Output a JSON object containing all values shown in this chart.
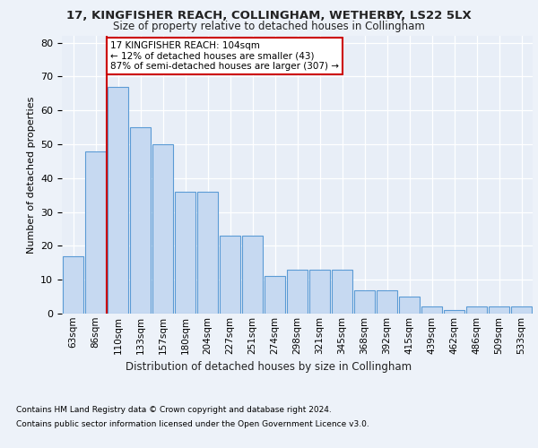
{
  "title": "17, KINGFISHER REACH, COLLINGHAM, WETHERBY, LS22 5LX",
  "subtitle": "Size of property relative to detached houses in Collingham",
  "xlabel": "Distribution of detached houses by size in Collingham",
  "ylabel": "Number of detached properties",
  "categories": [
    "63sqm",
    "86sqm",
    "110sqm",
    "133sqm",
    "157sqm",
    "180sqm",
    "204sqm",
    "227sqm",
    "251sqm",
    "274sqm",
    "298sqm",
    "321sqm",
    "345sqm",
    "368sqm",
    "392sqm",
    "415sqm",
    "439sqm",
    "462sqm",
    "486sqm",
    "509sqm",
    "533sqm"
  ],
  "values": [
    17,
    48,
    67,
    55,
    50,
    36,
    36,
    23,
    23,
    11,
    13,
    13,
    13,
    7,
    7,
    5,
    2,
    1,
    2,
    2,
    2
  ],
  "bar_color": "#c6d9f1",
  "bar_edge_color": "#5b9bd5",
  "vline_x_idx": 2,
  "vline_color": "#cc0000",
  "annotation_text": "17 KINGFISHER REACH: 104sqm\n← 12% of detached houses are smaller (43)\n87% of semi-detached houses are larger (307) →",
  "annotation_box_color": "#ffffff",
  "annotation_box_edge": "#cc0000",
  "footer1": "Contains HM Land Registry data © Crown copyright and database right 2024.",
  "footer2": "Contains public sector information licensed under the Open Government Licence v3.0.",
  "ylim": [
    0,
    82
  ],
  "yticks": [
    0,
    10,
    20,
    30,
    40,
    50,
    60,
    70,
    80
  ],
  "background_color": "#edf2f9",
  "plot_background": "#e8eef7"
}
